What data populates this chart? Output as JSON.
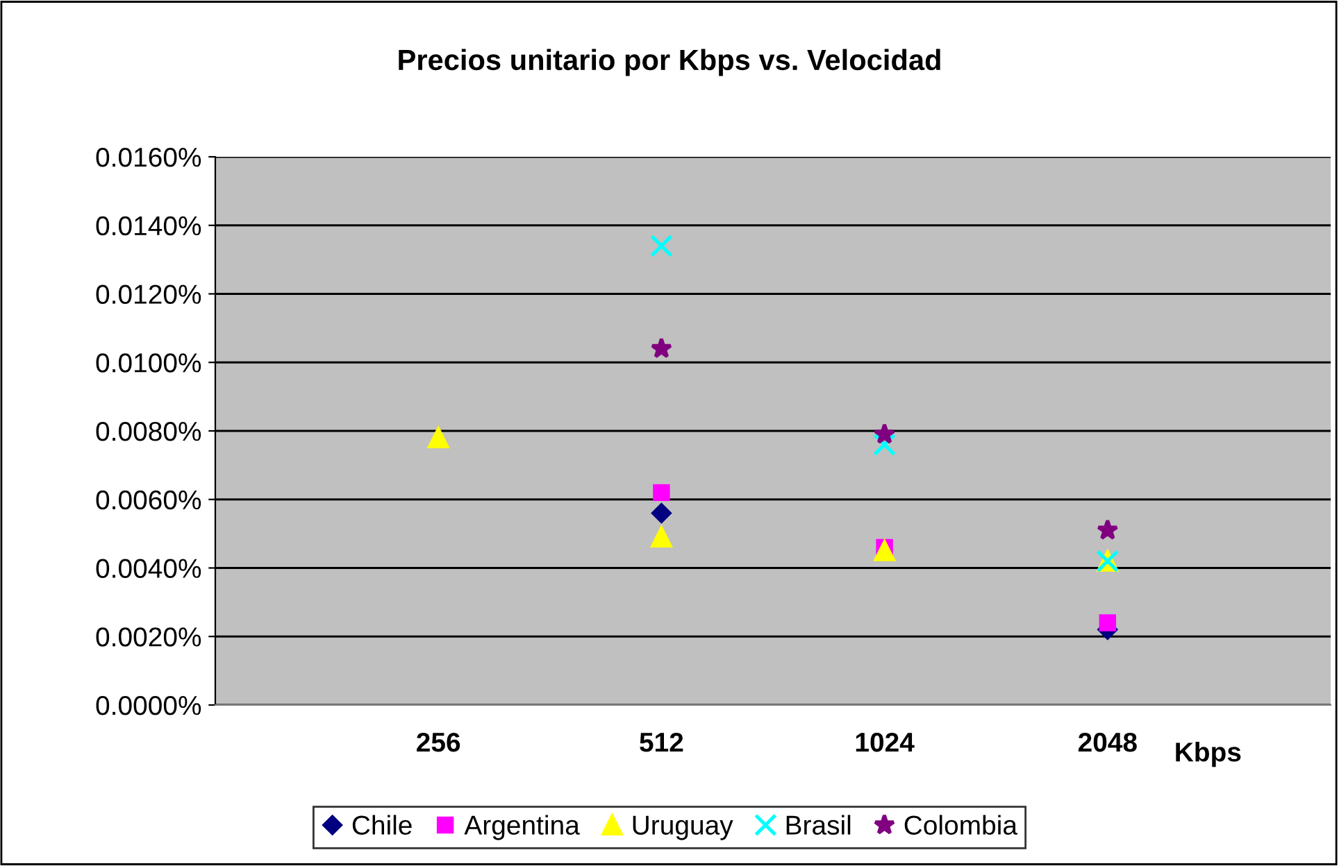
{
  "chart_data": {
    "type": "scatter",
    "title": "Precios unitario por Kbps vs. Velocidad",
    "xlabel": "Kbps",
    "categories": [
      null,
      "256",
      "512",
      "1024",
      "2048",
      null
    ],
    "series": [
      {
        "name": "Chile",
        "color": "#000080",
        "marker": "diamond",
        "values": [
          null,
          null,
          0.0056,
          null,
          0.0022,
          null
        ]
      },
      {
        "name": "Argentina",
        "color": "#ff00ff",
        "marker": "square",
        "values": [
          null,
          null,
          0.0062,
          0.0046,
          0.0024,
          null
        ]
      },
      {
        "name": "Uruguay",
        "color": "#ffff00",
        "marker": "triangle",
        "values": [
          null,
          0.0078,
          0.0049,
          0.0045,
          0.0042,
          null
        ]
      },
      {
        "name": "Brasil",
        "color": "#00ffff",
        "marker": "cross",
        "values": [
          null,
          null,
          0.0134,
          0.0076,
          0.0042,
          null
        ]
      },
      {
        "name": "Colombia",
        "color": "#800080",
        "marker": "star",
        "values": [
          null,
          null,
          0.0104,
          0.0079,
          0.0051,
          null
        ]
      }
    ],
    "ylim": [
      0,
      0.016
    ],
    "yticks": [
      {
        "value": 0,
        "label": "0.0000%"
      },
      {
        "value": 0.002,
        "label": "0.0020%"
      },
      {
        "value": 0.004,
        "label": "0.0040%"
      },
      {
        "value": 0.006,
        "label": "0.0060%"
      },
      {
        "value": 0.008,
        "label": "0.0080%"
      },
      {
        "value": 0.01,
        "label": "0.0100%"
      },
      {
        "value": 0.012,
        "label": "0.0120%"
      },
      {
        "value": 0.014,
        "label": "0.0140%"
      },
      {
        "value": 0.016,
        "label": "0.0160%"
      }
    ],
    "grid": "y",
    "legend": "bottom"
  }
}
